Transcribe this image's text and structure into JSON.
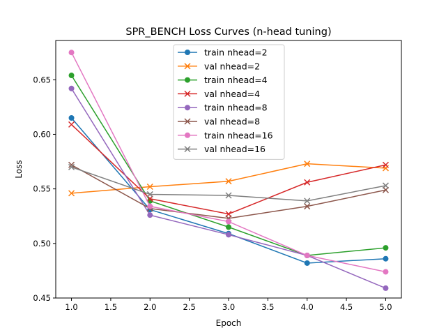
{
  "chart_data": {
    "type": "line",
    "title": "SPR_BENCH Loss Curves (n-head tuning)",
    "xlabel": "Epoch",
    "ylabel": "Loss",
    "xlim": [
      0.8,
      5.2
    ],
    "ylim": [
      0.45,
      0.686
    ],
    "xticks": [
      "1.0",
      "1.5",
      "2.0",
      "2.5",
      "3.0",
      "3.5",
      "4.0",
      "4.5",
      "5.0"
    ],
    "yticks": [
      "0.45",
      "0.50",
      "0.55",
      "0.60",
      "0.65"
    ],
    "grid": false,
    "legend_position": "top-center",
    "x": [
      1,
      2,
      3,
      4,
      5
    ],
    "series": [
      {
        "name": "train nhead=2",
        "marker": "circle",
        "color": "#1f77b4",
        "values": [
          0.615,
          0.531,
          0.509,
          0.482,
          0.486
        ]
      },
      {
        "name": "val nhead=2",
        "marker": "x",
        "color": "#ff7f0e",
        "values": [
          0.546,
          0.552,
          0.557,
          0.573,
          0.569
        ]
      },
      {
        "name": "train nhead=4",
        "marker": "circle",
        "color": "#2ca02c",
        "values": [
          0.654,
          0.539,
          0.515,
          0.489,
          0.496
        ]
      },
      {
        "name": "val nhead=4",
        "marker": "x",
        "color": "#d62728",
        "values": [
          0.609,
          0.541,
          0.527,
          0.556,
          0.572
        ]
      },
      {
        "name": "train nhead=8",
        "marker": "circle",
        "color": "#9467bd",
        "values": [
          0.642,
          0.526,
          0.508,
          0.489,
          0.459
        ]
      },
      {
        "name": "val nhead=8",
        "marker": "x",
        "color": "#8c564b",
        "values": [
          0.572,
          0.532,
          0.523,
          0.534,
          0.549
        ]
      },
      {
        "name": "train nhead=16",
        "marker": "circle",
        "color": "#e377c2",
        "values": [
          0.675,
          0.534,
          0.52,
          0.489,
          0.474
        ]
      },
      {
        "name": "val nhead=16",
        "marker": "x",
        "color": "#7f7f7f",
        "values": [
          0.57,
          0.545,
          0.544,
          0.539,
          0.553
        ]
      }
    ]
  }
}
